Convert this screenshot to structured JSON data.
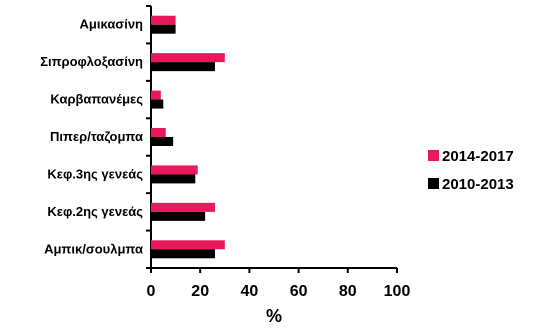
{
  "chart_data": {
    "type": "bar",
    "orientation": "horizontal",
    "categories": [
      "Αμικασίνη",
      "Σιπροφλοξασίνη",
      "Καρβαπανέμες",
      "Πιπερ/ταζομπα",
      "Κεφ.3ης γενεάς",
      "Κεφ.2ης γενεάς",
      "Αμπικ/σουλμπα"
    ],
    "series": [
      {
        "name": "2014-2017",
        "color": "#e8195a",
        "values": [
          10,
          30,
          4,
          6,
          19,
          26,
          30
        ]
      },
      {
        "name": "2010-2013",
        "color": "#000000",
        "values": [
          10,
          26,
          5,
          9,
          18,
          22,
          26
        ]
      }
    ],
    "xlabel": "%",
    "xlim": [
      0,
      100
    ],
    "xticks": [
      0,
      20,
      40,
      60,
      80,
      100
    ],
    "legend_position": "right",
    "grid": false
  }
}
